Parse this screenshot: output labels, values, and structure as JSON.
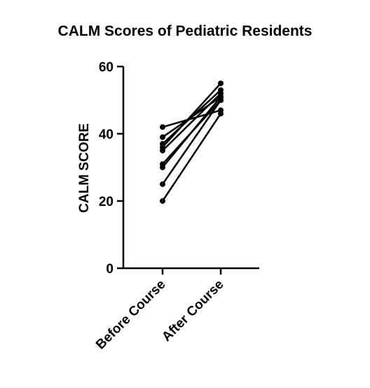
{
  "chart_data": {
    "type": "line",
    "title": "CALM Scores of Pediatric Residents",
    "xlabel": "",
    "ylabel": "CALM SCORE",
    "categories": [
      "Before Course",
      "After Course"
    ],
    "ylim": [
      0,
      60
    ],
    "yticks": [
      "0",
      "20",
      "40",
      "60"
    ],
    "grid": false,
    "legend": "none",
    "series": [
      {
        "values": [
          42,
          47
        ]
      },
      {
        "values": [
          39,
          51
        ]
      },
      {
        "values": [
          37,
          53
        ]
      },
      {
        "values": [
          36,
          55
        ]
      },
      {
        "values": [
          35,
          52
        ]
      },
      {
        "values": [
          31,
          50
        ]
      },
      {
        "values": [
          30,
          51
        ]
      },
      {
        "values": [
          25,
          50
        ]
      },
      {
        "values": [
          20,
          46
        ]
      }
    ],
    "line_color": "#000000"
  }
}
